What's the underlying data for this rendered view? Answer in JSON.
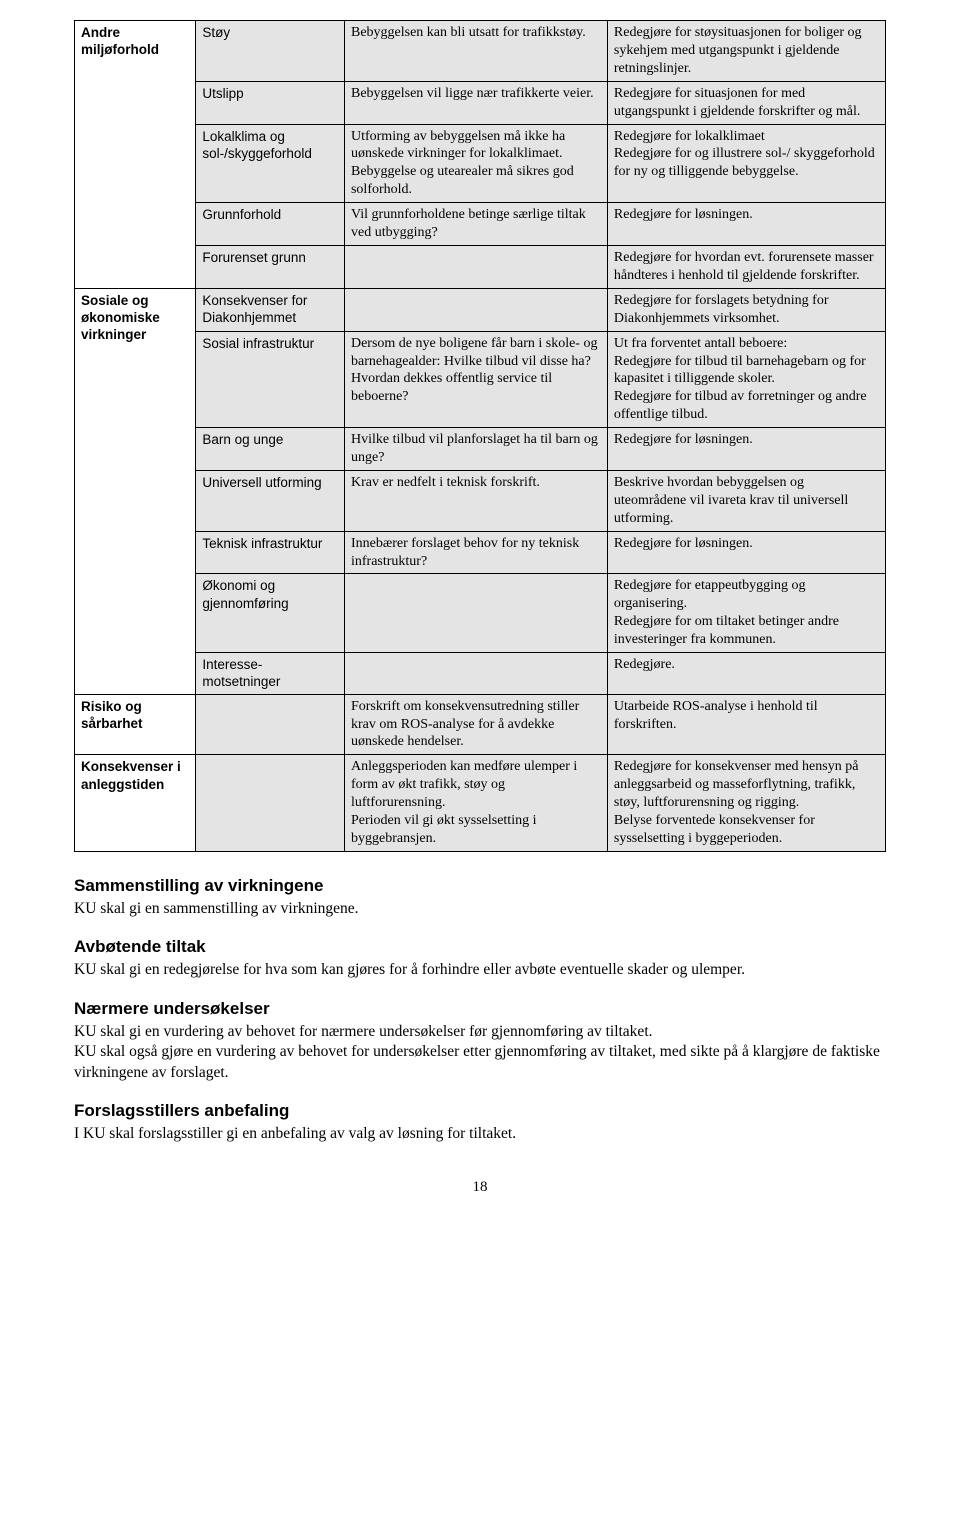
{
  "table": {
    "background_color": "#e4e4e4",
    "border_color": "#000000",
    "groups": [
      {
        "category": "Andre miljøforhold",
        "rowspan": 5,
        "rows": [
          {
            "sub": "Støy",
            "mid": "Bebyggelsen kan bli utsatt for trafikkstøy.",
            "right": "Redegjøre for støysituasjonen for boliger og sykehjem med utgangspunkt i gjeldende retningslinjer."
          },
          {
            "sub": "Utslipp",
            "mid": "Bebyggelsen vil ligge nær trafikkerte veier.",
            "right": "Redegjøre for situasjonen for med utgangspunkt i gjeldende forskrifter og mål."
          },
          {
            "sub": "Lokalklima og sol-/skyggeforhold",
            "mid": "Utforming av bebyggelsen må ikke ha uønskede virkninger for lokalklimaet.\nBebyggelse og utearealer må sikres god solforhold.",
            "right": "Redegjøre for lokalklimaet\nRedegjøre for og illustrere sol-/ skyggeforhold for ny og tilliggende bebyggelse."
          },
          {
            "sub": "Grunnforhold",
            "mid": "Vil grunnforholdene betinge særlige tiltak ved utbygging?",
            "right": "Redegjøre for løsningen."
          },
          {
            "sub": "Forurenset grunn",
            "mid": "",
            "right": "Redegjøre for hvordan evt. forurensete masser håndteres i henhold til gjeldende forskrifter."
          }
        ]
      },
      {
        "category": "Sosiale og økonomiske virkninger",
        "rowspan": 7,
        "rows": [
          {
            "sub": "Konsekvenser for Diakonhjemmet",
            "mid": "",
            "right": "Redegjøre for forslagets betydning for Diakonhjemmets virksomhet."
          },
          {
            "sub": "Sosial infrastruktur",
            "mid": "Dersom de nye boligene får barn i skole- og barnehagealder: Hvilke tilbud vil disse ha?\nHvordan dekkes offentlig service til beboerne?",
            "right": "Ut fra forventet antall beboere:\nRedegjøre for tilbud til barnehagebarn og for kapasitet i tilliggende skoler.\nRedegjøre for tilbud av forretninger og andre offentlige tilbud."
          },
          {
            "sub": "Barn og unge",
            "mid": "Hvilke tilbud vil planforslaget ha til barn og unge?",
            "right": "Redegjøre for løsningen."
          },
          {
            "sub": "Universell utforming",
            "mid": "Krav er nedfelt i teknisk forskrift.",
            "right": "Beskrive hvordan bebyggelsen og uteområdene vil ivareta krav til universell utforming."
          },
          {
            "sub": "Teknisk infrastruktur",
            "mid": "Innebærer forslaget behov for ny teknisk infrastruktur?",
            "right": "Redegjøre for løsningen."
          },
          {
            "sub": "Økonomi og gjennomføring",
            "mid": "",
            "right": "Redegjøre for etappeutbygging og organisering.\nRedegjøre for om tiltaket betinger andre investeringer fra kommunen."
          },
          {
            "sub": "Interesse-motsetninger",
            "mid": "",
            "right": "Redegjøre."
          }
        ]
      },
      {
        "category": "Risiko og sårbarhet",
        "rowspan": 1,
        "rows": [
          {
            "sub": "",
            "mid": "Forskrift om konsekvensutredning stiller krav om ROS-analyse for å avdekke uønskede hendelser.",
            "right": "Utarbeide ROS-analyse i henhold til forskriften."
          }
        ]
      },
      {
        "category": "Konsekvenser i anleggstiden",
        "rowspan": 1,
        "rows": [
          {
            "sub": "",
            "mid": "Anleggsperioden kan medføre ulemper i form av økt trafikk, støy og luftforurensning.\nPerioden vil gi økt sysselsetting i byggebransjen.",
            "right": "Redegjøre for konsekvenser med hensyn på anleggsarbeid og masseforflytning, trafikk, støy, luftforurensning og rigging.\nBelyse forventede konsekvenser for sysselsetting i byggeperioden."
          }
        ]
      }
    ]
  },
  "sections": [
    {
      "heading": "Sammenstilling av virkningene",
      "body": "KU skal gi en sammenstilling av virkningene."
    },
    {
      "heading": "Avbøtende tiltak",
      "body": "KU skal gi en redegjørelse for hva som kan gjøres for å forhindre eller avbøte eventuelle skader og ulemper."
    },
    {
      "heading": "Nærmere undersøkelser",
      "body": "KU skal gi en vurdering av behovet for nærmere undersøkelser før gjennomføring av tiltaket.\nKU skal også gjøre en vurdering av behovet for undersøkelser etter gjennomføring av tiltaket, med sikte på å klargjøre de faktiske virkningene av forslaget."
    },
    {
      "heading": "Forslagsstillers anbefaling",
      "body": "I KU skal forslagsstiller gi en anbefaling av valg av løsning for tiltaket."
    }
  ],
  "page_number": "18"
}
